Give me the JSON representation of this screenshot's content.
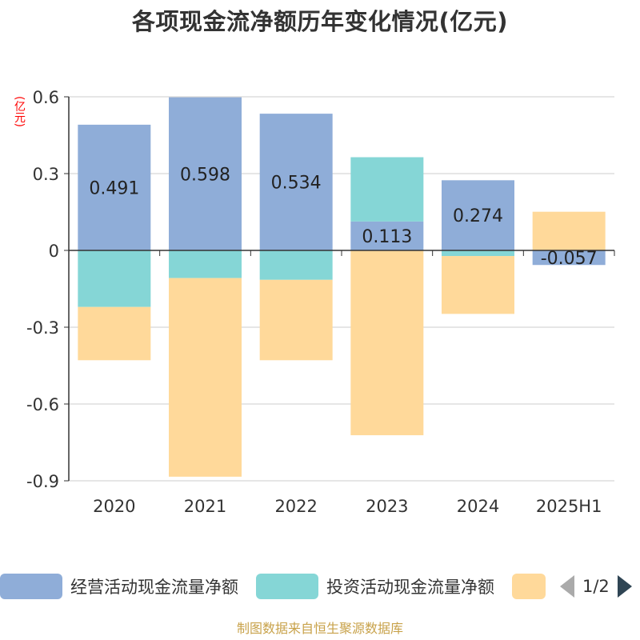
{
  "title": "各项现金流净额历年变化情况(亿元)",
  "source": "制图数据来自恒生聚源数据库",
  "legend": {
    "items": [
      {
        "label": "经营活动现金流量净额",
        "color": "#8fadd8"
      },
      {
        "label": "投资活动现金流量净额",
        "color": "#85d6d6"
      },
      {
        "label": "",
        "color": "#ffd99a"
      }
    ],
    "page": "1/2"
  },
  "chart_data": {
    "type": "bar",
    "stacked": true,
    "categories": [
      "2020",
      "2021",
      "2022",
      "2023",
      "2024",
      "2025H1"
    ],
    "ylabel": "(亿元)",
    "ylim": [
      -0.9,
      0.6
    ],
    "yticks": [
      "0.6",
      "0.3",
      "0",
      "-0.3",
      "-0.6",
      "-0.9"
    ],
    "ytick_values": [
      0.6,
      0.3,
      0,
      -0.3,
      -0.6,
      -0.9
    ],
    "grid": true,
    "series": [
      {
        "name": "经营活动现金流量净额",
        "color": "#8fadd8",
        "values": [
          0.491,
          0.598,
          0.534,
          0.113,
          0.274,
          -0.057
        ],
        "labels": [
          "0.491",
          "0.598",
          "0.534",
          "0.113",
          "0.274",
          "-0.057"
        ]
      },
      {
        "name": "投资活动现金流量净额",
        "color": "#85d6d6",
        "values": [
          -0.221,
          -0.108,
          -0.115,
          0.251,
          -0.022,
          0.0
        ]
      },
      {
        "name": "",
        "color": "#ffd99a",
        "values": [
          -0.208,
          -0.776,
          -0.314,
          -0.722,
          -0.226,
          0.151
        ]
      }
    ]
  }
}
